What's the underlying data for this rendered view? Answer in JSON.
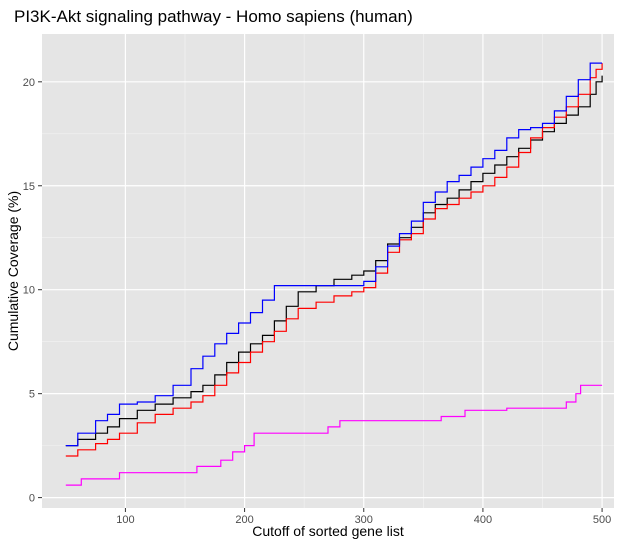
{
  "chart_data": {
    "type": "line",
    "title": "PI3K-Akt signaling pathway - Homo sapiens (human)",
    "xlabel": "Cutoff of sorted gene list",
    "ylabel": "Cumulative Coverage (%)",
    "xlim": [
      30,
      510
    ],
    "ylim": [
      -0.5,
      22.3
    ],
    "x_ticks": [
      100,
      200,
      300,
      400,
      500
    ],
    "y_ticks": [
      0,
      5,
      10,
      15,
      20
    ],
    "grid": true,
    "legend": "none",
    "panel_background": "#E5E5E5",
    "series": [
      {
        "color": "#000000",
        "points": [
          [
            50,
            2.5
          ],
          [
            60,
            2.8
          ],
          [
            75,
            3.1
          ],
          [
            85,
            3.4
          ],
          [
            95,
            3.8
          ],
          [
            110,
            4.2
          ],
          [
            125,
            4.5
          ],
          [
            140,
            4.8
          ],
          [
            155,
            5.1
          ],
          [
            165,
            5.4
          ],
          [
            175,
            5.9
          ],
          [
            185,
            6.5
          ],
          [
            195,
            7.0
          ],
          [
            205,
            7.4
          ],
          [
            215,
            7.8
          ],
          [
            225,
            8.5
          ],
          [
            235,
            9.2
          ],
          [
            245,
            9.9
          ],
          [
            260,
            10.2
          ],
          [
            275,
            10.5
          ],
          [
            290,
            10.7
          ],
          [
            300,
            10.9
          ],
          [
            310,
            11.4
          ],
          [
            320,
            12.2
          ],
          [
            330,
            12.5
          ],
          [
            340,
            13.0
          ],
          [
            350,
            13.7
          ],
          [
            360,
            14.1
          ],
          [
            370,
            14.4
          ],
          [
            380,
            14.8
          ],
          [
            390,
            15.2
          ],
          [
            400,
            15.6
          ],
          [
            410,
            16.0
          ],
          [
            420,
            16.4
          ],
          [
            430,
            16.8
          ],
          [
            440,
            17.2
          ],
          [
            450,
            17.6
          ],
          [
            460,
            18.0
          ],
          [
            470,
            18.4
          ],
          [
            480,
            18.8
          ],
          [
            490,
            19.4
          ],
          [
            495,
            20.0
          ],
          [
            500,
            20.3
          ]
        ]
      },
      {
        "color": "#FF0000",
        "points": [
          [
            50,
            2.0
          ],
          [
            60,
            2.3
          ],
          [
            75,
            2.6
          ],
          [
            85,
            2.8
          ],
          [
            95,
            3.1
          ],
          [
            110,
            3.6
          ],
          [
            125,
            4.0
          ],
          [
            140,
            4.3
          ],
          [
            155,
            4.6
          ],
          [
            165,
            4.9
          ],
          [
            175,
            5.4
          ],
          [
            185,
            6.0
          ],
          [
            195,
            6.5
          ],
          [
            205,
            7.0
          ],
          [
            215,
            7.5
          ],
          [
            225,
            8.0
          ],
          [
            235,
            8.6
          ],
          [
            245,
            9.1
          ],
          [
            260,
            9.4
          ],
          [
            275,
            9.7
          ],
          [
            290,
            9.9
          ],
          [
            300,
            10.1
          ],
          [
            310,
            10.8
          ],
          [
            320,
            11.8
          ],
          [
            330,
            12.4
          ],
          [
            340,
            12.7
          ],
          [
            350,
            13.4
          ],
          [
            360,
            13.9
          ],
          [
            370,
            14.1
          ],
          [
            380,
            14.4
          ],
          [
            390,
            14.7
          ],
          [
            400,
            15.0
          ],
          [
            410,
            15.4
          ],
          [
            420,
            15.9
          ],
          [
            430,
            16.6
          ],
          [
            440,
            17.3
          ],
          [
            450,
            17.8
          ],
          [
            460,
            18.3
          ],
          [
            470,
            18.8
          ],
          [
            480,
            19.4
          ],
          [
            490,
            20.2
          ],
          [
            495,
            20.6
          ],
          [
            500,
            20.9
          ]
        ]
      },
      {
        "color": "#0000FF",
        "points": [
          [
            50,
            2.5
          ],
          [
            60,
            3.1
          ],
          [
            75,
            3.7
          ],
          [
            85,
            4.0
          ],
          [
            95,
            4.5
          ],
          [
            110,
            4.6
          ],
          [
            125,
            4.9
          ],
          [
            140,
            5.4
          ],
          [
            155,
            6.2
          ],
          [
            165,
            6.8
          ],
          [
            175,
            7.4
          ],
          [
            185,
            7.9
          ],
          [
            195,
            8.4
          ],
          [
            205,
            8.9
          ],
          [
            215,
            9.5
          ],
          [
            225,
            10.2
          ],
          [
            235,
            10.2
          ],
          [
            245,
            10.2
          ],
          [
            260,
            10.2
          ],
          [
            275,
            10.2
          ],
          [
            290,
            10.2
          ],
          [
            300,
            10.4
          ],
          [
            310,
            11.1
          ],
          [
            320,
            12.1
          ],
          [
            330,
            12.7
          ],
          [
            340,
            13.3
          ],
          [
            350,
            14.2
          ],
          [
            360,
            14.7
          ],
          [
            370,
            15.2
          ],
          [
            380,
            15.5
          ],
          [
            390,
            15.9
          ],
          [
            400,
            16.3
          ],
          [
            410,
            16.7
          ],
          [
            420,
            17.3
          ],
          [
            430,
            17.7
          ],
          [
            440,
            17.8
          ],
          [
            450,
            18.0
          ],
          [
            460,
            18.6
          ],
          [
            470,
            19.3
          ],
          [
            480,
            20.1
          ],
          [
            490,
            20.9
          ],
          [
            500,
            20.9
          ]
        ]
      },
      {
        "color": "#FF00FF",
        "points": [
          [
            50,
            0.6
          ],
          [
            63,
            0.9
          ],
          [
            95,
            1.2
          ],
          [
            160,
            1.5
          ],
          [
            180,
            1.8
          ],
          [
            190,
            2.2
          ],
          [
            200,
            2.5
          ],
          [
            208,
            3.1
          ],
          [
            240,
            3.1
          ],
          [
            270,
            3.4
          ],
          [
            280,
            3.7
          ],
          [
            310,
            3.7
          ],
          [
            340,
            3.7
          ],
          [
            365,
            3.9
          ],
          [
            385,
            4.2
          ],
          [
            420,
            4.3
          ],
          [
            445,
            4.3
          ],
          [
            470,
            4.6
          ],
          [
            478,
            5.0
          ],
          [
            482,
            5.4
          ],
          [
            500,
            5.4
          ]
        ]
      }
    ]
  }
}
